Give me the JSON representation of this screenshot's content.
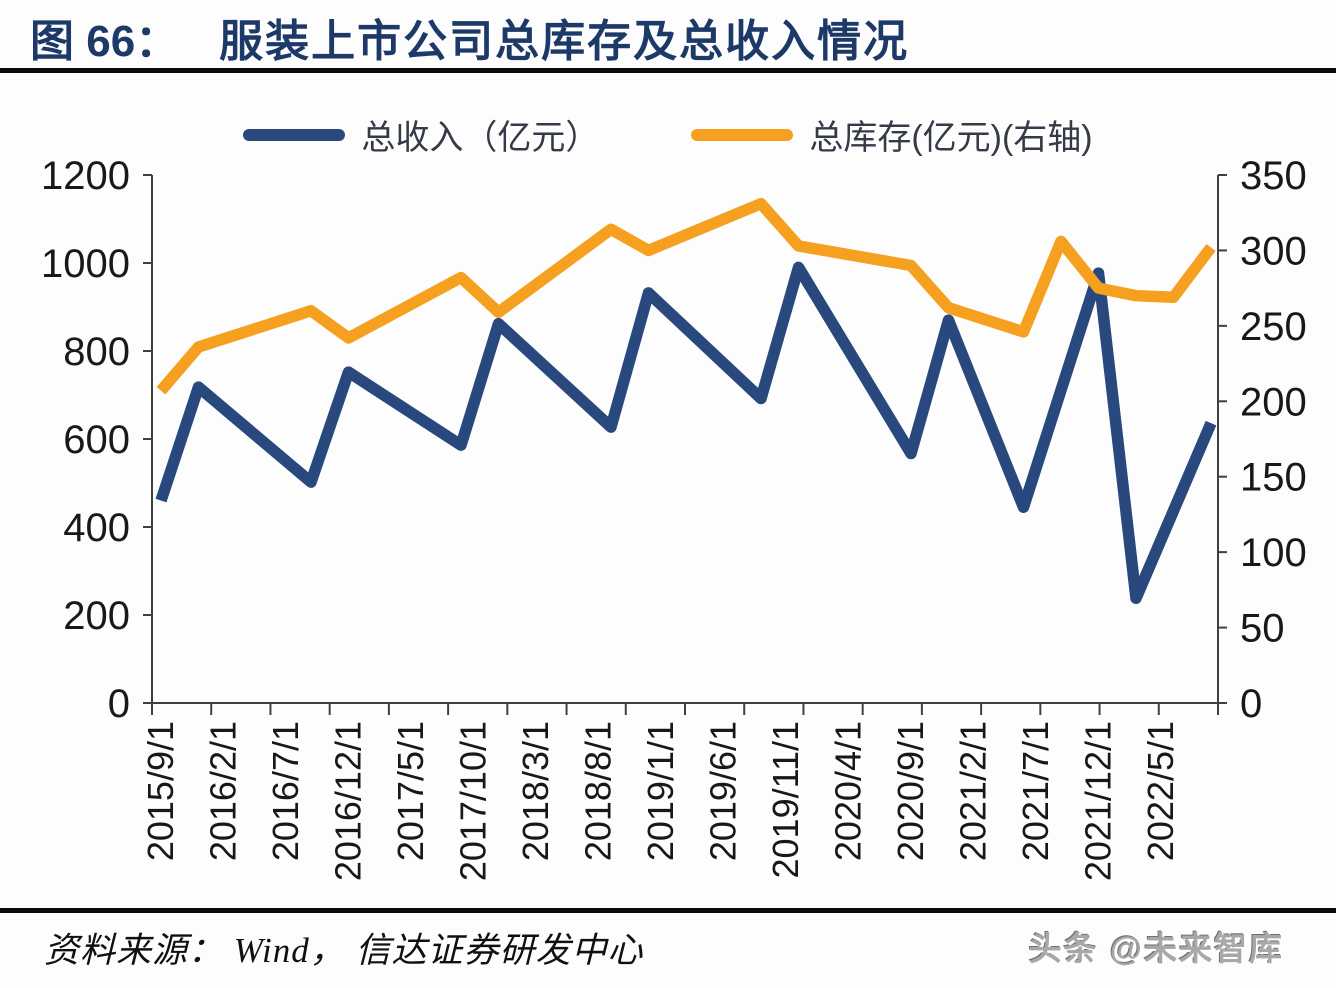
{
  "figure": {
    "label": "图 66：",
    "title": "服装上市公司总库存及总收入情况",
    "title_color": "#1d3968"
  },
  "footer": {
    "source": "资料来源： Wind， 信达证券研发中心",
    "watermark": "头条 @未来智库"
  },
  "chart_data": {
    "type": "line",
    "title": "服装上市公司总库存及总收入情况",
    "legend_position": "top",
    "grid": false,
    "x_axis": {
      "tick_labels": [
        "2015/9/1",
        "2016/2/1",
        "2016/7/1",
        "2016/12/1",
        "2017/5/1",
        "2017/10/1",
        "2018/3/1",
        "2018/8/1",
        "2019/1/1",
        "2019/6/1",
        "2019/11/1",
        "2020/4/1",
        "2020/9/1",
        "2021/2/1",
        "2021/7/1",
        "2021/12/1",
        "2022/5/1"
      ]
    },
    "y_left": {
      "min": 0,
      "max": 1200,
      "step": 200,
      "tick_labels": [
        "1200",
        "1000",
        "800",
        "600",
        "400",
        "200",
        "0"
      ]
    },
    "y_right": {
      "min": 0,
      "max": 350,
      "step": 50,
      "tick_labels": [
        "350",
        "300",
        "250",
        "200",
        "150",
        "100",
        "50",
        "0"
      ]
    },
    "series": [
      {
        "name": "总收入（亿元）",
        "axis": "left",
        "color": "#29497E",
        "points": [
          [
            "2015/9",
            460
          ],
          [
            "2015/12",
            718
          ],
          [
            "2016/9",
            502
          ],
          [
            "2016/12",
            752
          ],
          [
            "2017/9",
            586
          ],
          [
            "2017/12",
            862
          ],
          [
            "2018/9",
            627
          ],
          [
            "2018/12",
            932
          ],
          [
            "2019/9",
            692
          ],
          [
            "2019/12",
            990
          ],
          [
            "2020/9",
            567
          ],
          [
            "2020/12",
            870
          ],
          [
            "2021/6",
            445
          ],
          [
            "2021/12",
            977
          ],
          [
            "2022/3",
            238
          ],
          [
            "2022/9",
            636
          ]
        ]
      },
      {
        "name": "总库存(亿元)(右轴)",
        "axis": "right",
        "color": "#F5A01F",
        "points": [
          [
            "2015/9",
            207
          ],
          [
            "2015/12",
            236
          ],
          [
            "2016/9",
            260
          ],
          [
            "2016/12",
            242
          ],
          [
            "2017/9",
            282
          ],
          [
            "2017/12",
            259
          ],
          [
            "2018/9",
            314
          ],
          [
            "2018/12",
            300
          ],
          [
            "2019/9",
            331
          ],
          [
            "2019/12",
            303
          ],
          [
            "2020/9",
            290
          ],
          [
            "2020/12",
            262
          ],
          [
            "2021/6",
            246
          ],
          [
            "2021/9",
            306
          ],
          [
            "2021/12",
            275
          ],
          [
            "2022/3",
            270
          ],
          [
            "2022/6",
            269
          ],
          [
            "2022/9",
            302
          ]
        ]
      }
    ]
  }
}
